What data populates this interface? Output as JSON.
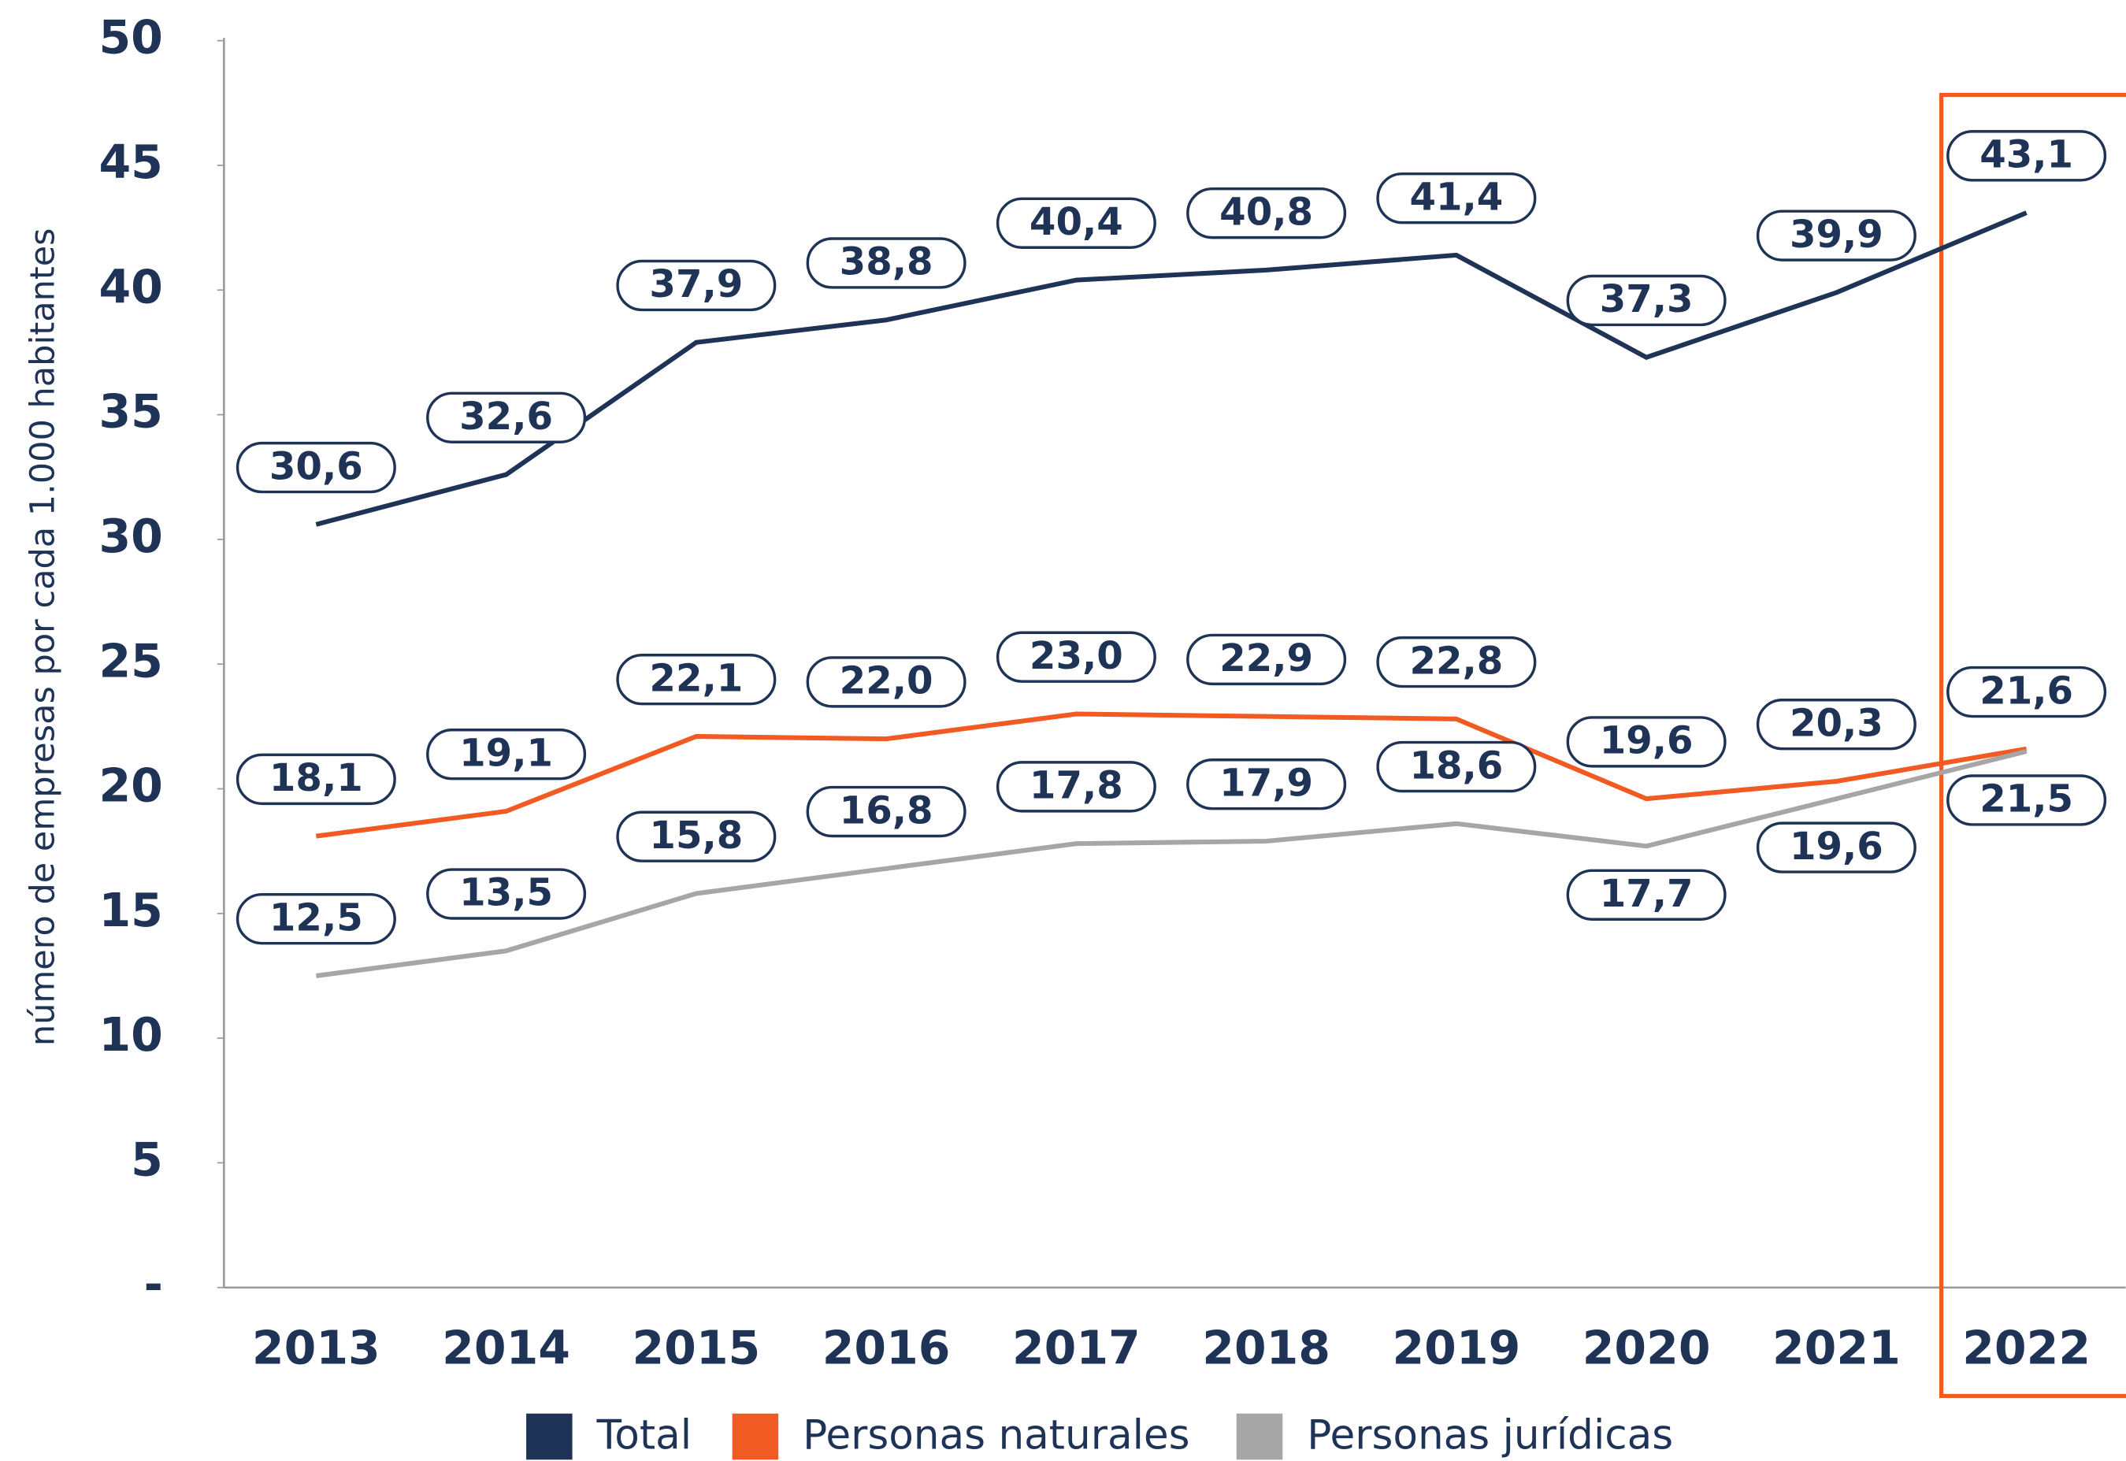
{
  "chart_data": {
    "type": "line",
    "y_label": "número de empresas por cada 1.000 habitantes",
    "categories": [
      "2013",
      "2014",
      "2015",
      "2016",
      "2017",
      "2018",
      "2019",
      "2020",
      "2021",
      "2022"
    ],
    "ylim": [
      0,
      50
    ],
    "yticks": [
      {
        "value": 0,
        "label": "-"
      },
      5,
      10,
      15,
      20,
      25,
      30,
      35,
      40,
      45,
      50
    ],
    "series": [
      {
        "name": "Total",
        "color": "#1f3357",
        "values": [
          30.6,
          32.6,
          37.9,
          38.8,
          40.4,
          40.8,
          41.4,
          37.3,
          39.9,
          43.1
        ],
        "value_labels": [
          "30,6",
          "32,6",
          "37,9",
          "38,8",
          "40,4",
          "40,8",
          "41,4",
          "37,3",
          "39,9",
          "43,1"
        ]
      },
      {
        "name": "Personas naturales",
        "color": "#f15a22",
        "values": [
          18.1,
          19.1,
          22.1,
          22.0,
          23.0,
          22.9,
          22.8,
          19.6,
          20.3,
          21.6
        ],
        "value_labels": [
          "18,1",
          "19,1",
          "22,1",
          "22,0",
          "23,0",
          "22,9",
          "22,8",
          "19,6",
          "20,3",
          "21,6"
        ]
      },
      {
        "name": "Personas jurídicas",
        "color": "#a6a6a6",
        "values": [
          12.5,
          13.5,
          15.8,
          16.8,
          17.8,
          17.9,
          18.6,
          17.7,
          19.6,
          21.5
        ],
        "value_labels": [
          "12,5",
          "13,5",
          "15,8",
          "16,8",
          "17,8",
          "17,9",
          "18,6",
          "17,7",
          "19,6",
          "21,5"
        ]
      }
    ]
  }
}
